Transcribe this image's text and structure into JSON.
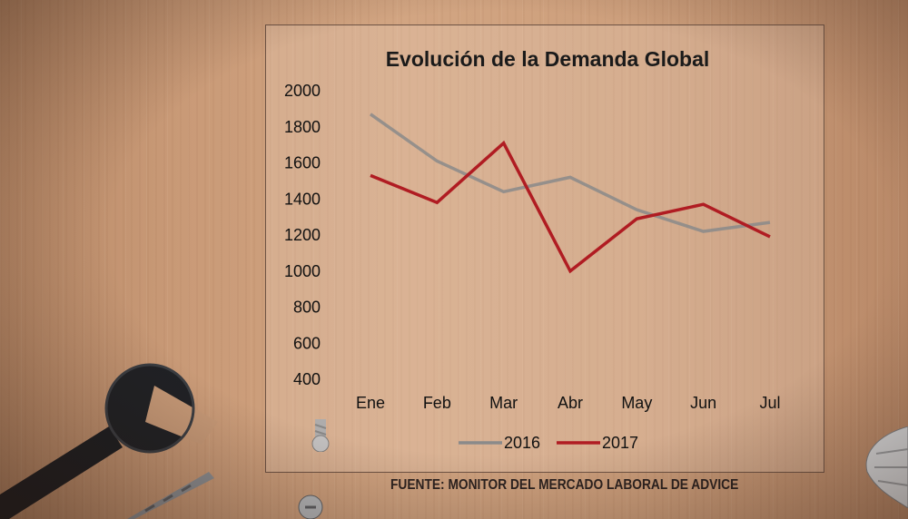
{
  "source_note": "FUENTE: MONITOR DEL MERCADO LABORAL DE ADVICE",
  "chart_data": {
    "type": "line",
    "title": "Evolución de la Demanda Global",
    "xlabel": "",
    "ylabel": "",
    "categories": [
      "Ene",
      "Feb",
      "Mar",
      "Abr",
      "May",
      "Jun",
      "Jul"
    ],
    "ylim": [
      400,
      2000
    ],
    "yticks": [
      400,
      600,
      800,
      1000,
      1200,
      1400,
      1600,
      1800,
      2000
    ],
    "grid": false,
    "legend_position": "bottom",
    "series": [
      {
        "name": "2016",
        "color": "#8a8a8a",
        "values": [
          1870,
          1610,
          1440,
          1520,
          1340,
          1220,
          1270
        ]
      },
      {
        "name": "2017",
        "color": "#b01c22",
        "values": [
          1530,
          1380,
          1710,
          1000,
          1290,
          1370,
          1190
        ]
      }
    ]
  },
  "decorations": [
    "wrench-icon",
    "drill-bit-icon",
    "screw-icon",
    "screw-icon",
    "pliers-icon"
  ]
}
